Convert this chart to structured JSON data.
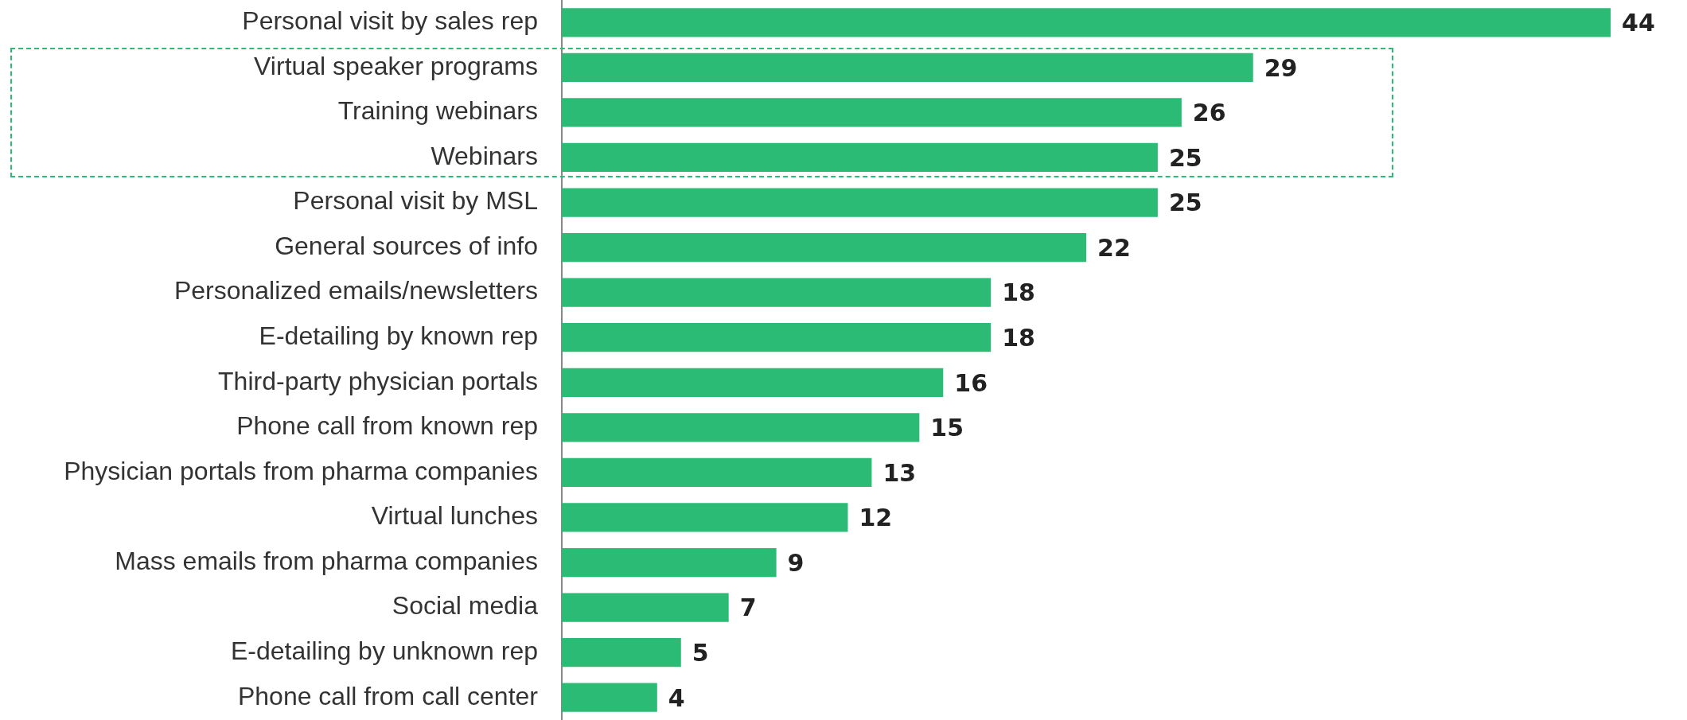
{
  "chart_data": {
    "type": "bar",
    "orientation": "horizontal",
    "categories": [
      "Personal visit by sales rep",
      "Virtual speaker programs",
      "Training webinars",
      "Webinars",
      "Personal visit by MSL",
      "General sources of info",
      "Personalized emails/newsletters",
      "E-detailing by known rep",
      "Third-party physician portals",
      "Phone call from known rep",
      "Physician portals from pharma companies",
      "Virtual lunches",
      "Mass emails from pharma companies",
      "Social media",
      "E-detailing by unknown rep",
      "Phone call from call center"
    ],
    "values": [
      44,
      29,
      26,
      25,
      25,
      22,
      18,
      18,
      16,
      15,
      13,
      12,
      9,
      7,
      5,
      4
    ],
    "color": "#2bbb74",
    "data_labels": true,
    "grid": false,
    "legend": false,
    "tick_labels": "y"
  }
}
